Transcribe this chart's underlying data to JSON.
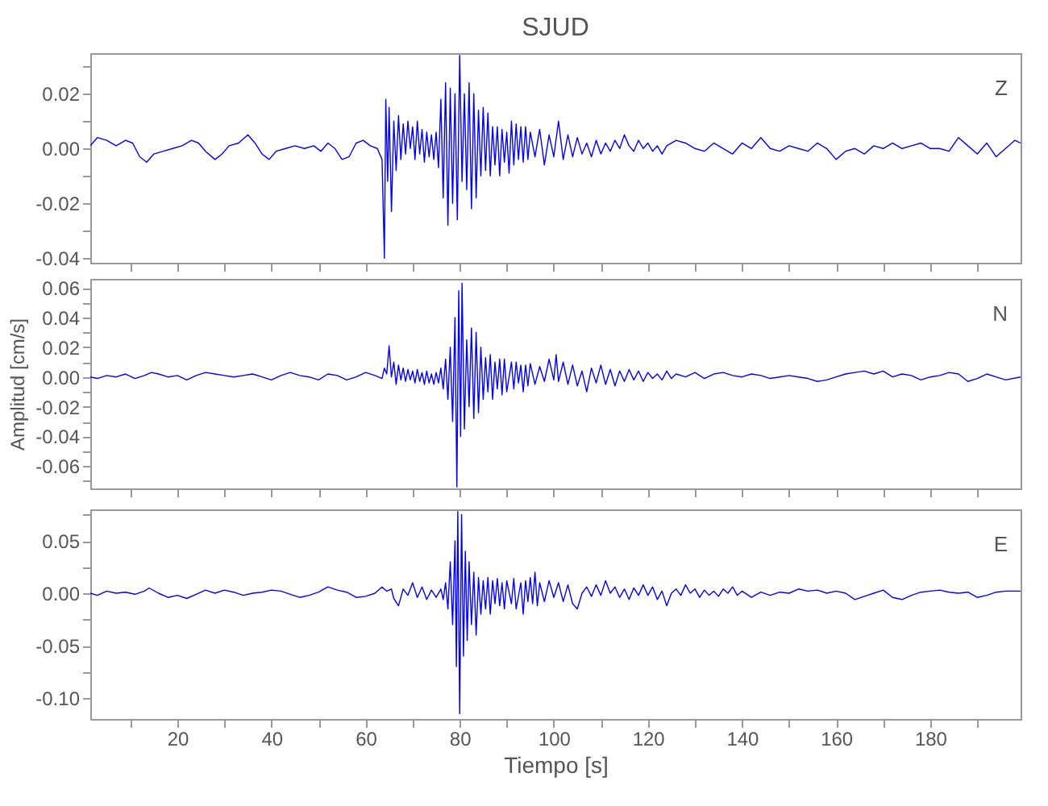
{
  "chart_data": [
    {
      "type": "line",
      "title": "SJUD",
      "annotations": [
        "Z"
      ],
      "tick_labels": "y",
      "xlim": [
        1.5,
        199.2
      ],
      "ylim": [
        -0.0417,
        0.0348
      ],
      "xticks": [
        {
          "value": 10,
          "label": null
        },
        20,
        {
          "value": 30,
          "label": null
        },
        40,
        {
          "value": 50,
          "label": null
        },
        60,
        {
          "value": 70,
          "label": null
        },
        80,
        {
          "value": 90,
          "label": null
        },
        100,
        {
          "value": 110,
          "label": null
        },
        120,
        {
          "value": 130,
          "label": null
        },
        140,
        {
          "value": 150,
          "label": null
        },
        160,
        {
          "value": 170,
          "label": null
        },
        180,
        {
          "value": 190,
          "label": null
        }
      ],
      "yticks": [
        {
          "value": -0.04,
          "label": "-0.04"
        },
        {
          "value": -0.03,
          "label": null
        },
        {
          "value": -0.02,
          "label": "-0.02"
        },
        {
          "value": -0.01,
          "label": null
        },
        {
          "value": 0,
          "label": "0.00"
        },
        {
          "value": 0.01,
          "label": null
        },
        0.02,
        {
          "value": 0.03,
          "label": null
        }
      ],
      "series": [
        {
          "color": "#0000ff",
          "x": [
            1.5,
            3,
            5,
            7,
            9,
            10.5,
            12,
            13.5,
            15,
            17,
            19,
            21,
            23,
            24.5,
            26,
            28,
            29.5,
            31,
            33,
            35,
            36.5,
            38,
            39.5,
            41,
            43,
            45,
            47,
            49,
            50.5,
            52,
            53.5,
            55,
            56.5,
            58,
            59.5,
            61,
            62.5,
            63.5,
            64,
            64.3,
            64.7,
            65,
            65.5,
            66,
            66.5,
            67,
            67.5,
            68,
            68.5,
            69,
            69.5,
            70,
            70.5,
            71,
            71.5,
            72,
            72.5,
            73,
            73.5,
            74,
            74.5,
            75,
            75.5,
            76,
            76.5,
            77,
            77.5,
            78,
            78.5,
            79,
            79.5,
            80,
            80.5,
            81,
            81.5,
            82,
            82.5,
            83,
            83.5,
            84,
            84.5,
            85,
            85.5,
            86,
            86.5,
            87,
            87.5,
            88,
            88.5,
            89,
            89.5,
            90,
            90.5,
            91,
            91.5,
            92,
            92.5,
            93,
            93.5,
            94,
            94.5,
            95,
            96,
            97,
            98,
            99,
            100,
            101,
            102,
            103,
            104,
            105,
            106,
            107,
            108,
            109,
            110,
            111,
            112,
            113,
            114,
            115,
            116,
            117,
            118,
            119,
            120,
            121,
            122,
            123,
            124,
            126,
            128,
            130,
            132,
            134,
            136,
            138,
            140,
            142,
            144,
            146,
            148,
            150,
            152,
            154,
            156,
            158,
            160,
            162,
            164,
            166,
            168,
            170,
            172,
            174,
            176,
            178,
            180,
            182,
            184,
            186,
            188,
            190,
            192,
            194,
            196,
            198,
            199.2
          ],
          "values": [
            0.001,
            0.004,
            0.003,
            0.001,
            0.003,
            0.002,
            -0.003,
            -0.005,
            -0.002,
            -0.001,
            0,
            0.001,
            0.003,
            0.002,
            -0.001,
            -0.004,
            -0.002,
            0.001,
            0.002,
            0.005,
            0.002,
            -0.002,
            -0.004,
            -0.001,
            0,
            0.001,
            0,
            0.001,
            -0.001,
            0.002,
            0,
            -0.004,
            -0.003,
            0.002,
            0.003,
            0.001,
            0,
            -0.004,
            -0.04,
            0.018,
            -0.012,
            0.015,
            -0.023,
            0.01,
            -0.008,
            0.012,
            -0.004,
            0.009,
            -0.002,
            0.01,
            0,
            0.008,
            -0.004,
            0.01,
            -0.002,
            0.007,
            -0.005,
            0.006,
            -0.003,
            0.005,
            -0.004,
            0.006,
            -0.007,
            0.018,
            -0.018,
            0.024,
            -0.028,
            0.022,
            -0.02,
            0.02,
            -0.026,
            0.034,
            -0.012,
            0.02,
            -0.015,
            0.024,
            -0.022,
            0.02,
            -0.018,
            0.014,
            -0.01,
            0.015,
            -0.008,
            0.013,
            -0.01,
            0.008,
            -0.006,
            0.008,
            -0.01,
            0.007,
            -0.005,
            0.006,
            -0.009,
            0.01,
            -0.006,
            0.009,
            -0.004,
            0.008,
            -0.005,
            0.008,
            -0.004,
            0.006,
            -0.003,
            0.007,
            -0.006,
            0.005,
            -0.003,
            0.01,
            -0.004,
            0.005,
            -0.003,
            0.004,
            -0.002,
            0.002,
            -0.003,
            0.003,
            -0.002,
            0.002,
            -0.001,
            0.003,
            0,
            0.005,
            0.001,
            -0.001,
            0.003,
            0,
            0.002,
            -0.001,
            0.001,
            -0.002,
            0.001,
            0.003,
            0.002,
            0,
            -0.001,
            0.002,
            0,
            -0.002,
            0.002,
            0,
            0.004,
            0,
            -0.001,
            0.001,
            0,
            -0.001,
            0.002,
            0,
            -0.004,
            -0.001,
            0,
            -0.002,
            0.001,
            0,
            0.002,
            0,
            0.001,
            0.002,
            0,
            0,
            -0.001,
            0.004,
            0.001,
            -0.002,
            0.002,
            -0.003,
            0,
            0.003,
            0.002
          ]
        }
      ]
    },
    {
      "type": "line",
      "ylabel": "Amplitud [cm/s]",
      "annotations": [
        "N"
      ],
      "tick_labels": "y",
      "xlim": [
        1.5,
        199.2
      ],
      "ylim": [
        -0.075,
        0.066
      ],
      "xticks": [
        {
          "value": 10,
          "label": null
        },
        20,
        {
          "value": 30,
          "label": null
        },
        40,
        {
          "value": 50,
          "label": null
        },
        60,
        {
          "value": 70,
          "label": null
        },
        80,
        {
          "value": 90,
          "label": null
        },
        100,
        {
          "value": 110,
          "label": null
        },
        120,
        {
          "value": 130,
          "label": null
        },
        140,
        {
          "value": 150,
          "label": null
        },
        160,
        {
          "value": 170,
          "label": null
        },
        180,
        {
          "value": 190,
          "label": null
        }
      ],
      "yticks": [
        {
          "value": -0.07,
          "label": null
        },
        {
          "value": -0.06,
          "label": "-0.06"
        },
        {
          "value": -0.05,
          "label": null
        },
        {
          "value": -0.04,
          "label": "-0.04"
        },
        {
          "value": -0.03,
          "label": null
        },
        {
          "value": -0.02,
          "label": "-0.02"
        },
        {
          "value": -0.01,
          "label": null
        },
        {
          "value": 0,
          "label": "0.00"
        },
        {
          "value": 0.01,
          "label": null
        },
        0.02,
        {
          "value": 0.03,
          "label": null
        },
        0.04,
        {
          "value": 0.05,
          "label": null
        },
        0.06
      ],
      "series": [
        {
          "color": "#0000ff",
          "x": [
            1.5,
            3,
            5,
            7,
            9,
            11,
            13,
            14.5,
            16,
            18,
            20,
            22,
            24,
            26,
            28,
            30,
            32,
            34,
            36,
            38,
            40,
            42,
            44,
            46,
            48,
            50,
            52,
            54,
            56,
            58,
            60,
            62,
            63.5,
            64,
            64.5,
            65,
            65.5,
            66,
            66.5,
            67,
            67.5,
            68,
            68.5,
            69,
            69.5,
            70,
            70.5,
            71,
            71.5,
            72,
            72.5,
            73,
            73.5,
            74,
            74.5,
            75,
            75.5,
            76,
            76.5,
            77,
            77.5,
            78,
            78.5,
            79,
            79.4,
            79.8,
            80.2,
            80.5,
            81,
            81.5,
            82,
            82.5,
            83,
            83.5,
            84,
            84.5,
            85,
            85.5,
            86,
            86.5,
            87,
            87.5,
            88,
            88.5,
            89,
            89.5,
            90,
            91,
            91.5,
            92,
            92.5,
            93,
            93.5,
            94,
            94.5,
            95,
            96,
            97,
            98,
            99,
            100,
            100.5,
            101,
            102,
            103,
            104,
            105,
            106,
            107,
            108,
            109,
            110,
            111,
            112,
            113,
            114,
            115,
            116,
            117,
            118,
            119,
            120,
            121,
            122,
            123,
            124,
            125,
            126,
            128,
            130,
            132,
            134,
            136,
            138,
            140,
            142,
            144,
            146,
            148,
            150,
            152,
            154,
            156,
            158,
            160,
            162,
            164,
            166,
            168,
            170,
            172,
            174,
            176,
            178,
            180,
            182,
            184,
            186,
            188,
            190,
            192,
            194,
            196,
            199.2
          ],
          "values": [
            0,
            -0.001,
            0.001,
            0,
            0.002,
            -0.001,
            0.001,
            0.003,
            0.002,
            0,
            0.001,
            -0.002,
            0.001,
            0.003,
            0.002,
            0.001,
            0,
            0.001,
            0.002,
            0,
            -0.002,
            0.001,
            0.003,
            0.001,
            0,
            -0.002,
            0.002,
            0.001,
            -0.002,
            0,
            0.003,
            0.001,
            -0.001,
            0.006,
            0.002,
            0.021,
            0,
            0.01,
            -0.005,
            0.008,
            -0.002,
            0.006,
            -0.003,
            0.005,
            -0.002,
            0.004,
            -0.004,
            0.005,
            -0.003,
            0.003,
            -0.005,
            0.004,
            -0.004,
            0.002,
            -0.005,
            0.003,
            -0.004,
            0.006,
            -0.008,
            0.012,
            -0.015,
            0.02,
            -0.03,
            0.04,
            -0.074,
            0.058,
            -0.04,
            0.063,
            -0.035,
            0.025,
            -0.02,
            0.033,
            -0.028,
            0.03,
            -0.024,
            0.02,
            -0.015,
            0.013,
            -0.01,
            0.015,
            -0.015,
            0.01,
            -0.008,
            0.012,
            -0.012,
            0.012,
            -0.01,
            0.01,
            -0.008,
            0.01,
            -0.004,
            0.008,
            -0.01,
            0.008,
            -0.006,
            0.009,
            -0.005,
            0.007,
            -0.003,
            0.012,
            -0.002,
            0.015,
            -0.003,
            0.01,
            -0.005,
            0.008,
            -0.006,
            0.004,
            -0.01,
            0.006,
            -0.004,
            0.008,
            -0.005,
            0.005,
            -0.006,
            0.004,
            -0.003,
            0.005,
            -0.002,
            0.004,
            -0.003,
            0.003,
            -0.001,
            0.002,
            -0.002,
            0.004,
            -0.001,
            0.002,
            0,
            0.003,
            -0.001,
            0.002,
            0.003,
            0.001,
            0,
            0.002,
            0.001,
            -0.001,
            0,
            0.001,
            0,
            -0.001,
            -0.003,
            -0.002,
            0,
            0.002,
            0.003,
            0.004,
            0.002,
            0.004,
            0,
            0.002,
            0.001,
            -0.002,
            0,
            0.001,
            0.003,
            0.002,
            -0.003,
            -0.001,
            0.002,
            0,
            -0.002,
            0
          ]
        }
      ]
    },
    {
      "type": "line",
      "xlabel": "Tiempo [s]",
      "annotations": [
        "E"
      ],
      "xlim": [
        1.5,
        199.2
      ],
      "ylim": [
        -0.12,
        0.08
      ],
      "xticks": [
        {
          "value": 10,
          "label": null
        },
        20,
        {
          "value": 30,
          "label": null
        },
        40,
        {
          "value": 50,
          "label": null
        },
        60,
        {
          "value": 70,
          "label": null
        },
        80,
        {
          "value": 90,
          "label": null
        },
        100,
        {
          "value": 110,
          "label": null
        },
        120,
        {
          "value": 130,
          "label": null
        },
        140,
        {
          "value": 150,
          "label": null
        },
        160,
        {
          "value": 170,
          "label": null
        },
        180,
        {
          "value": 190,
          "label": null
        }
      ],
      "yticks": [
        {
          "value": -0.1,
          "label": "-0.10"
        },
        {
          "value": -0.075,
          "label": null
        },
        {
          "value": -0.05,
          "label": "-0.05"
        },
        {
          "value": -0.025,
          "label": null
        },
        {
          "value": 0,
          "label": "0.00"
        },
        {
          "value": 0.025,
          "label": null
        },
        0.05,
        {
          "value": 0.075,
          "label": null
        }
      ],
      "series": [
        {
          "color": "#0000ff",
          "x": [
            1.5,
            3,
            5,
            7,
            9,
            11,
            13,
            14,
            16,
            18,
            20,
            22,
            24,
            26,
            28,
            30,
            32,
            34,
            36,
            38,
            40,
            42,
            44,
            46,
            48,
            50,
            52,
            54,
            56,
            58,
            60,
            62,
            63.5,
            64.5,
            65.5,
            66,
            67,
            68,
            69,
            70,
            71,
            72,
            73,
            74,
            75,
            76,
            76.5,
            77,
            77.5,
            78,
            78.5,
            79,
            79.3,
            79.6,
            80,
            80.4,
            80.8,
            81.2,
            81.6,
            82,
            82.5,
            83,
            83.5,
            84,
            84.5,
            85,
            85.5,
            86,
            86.5,
            87,
            87.5,
            88,
            88.5,
            89,
            89.5,
            90,
            91,
            91.5,
            92,
            93,
            93.5,
            94,
            94.5,
            95,
            95.5,
            96,
            96.5,
            97,
            98,
            99,
            100,
            101,
            102,
            103,
            104,
            105,
            106,
            107,
            108,
            109,
            110,
            111,
            112,
            113,
            114,
            115,
            116,
            117,
            118,
            119,
            120,
            121,
            122,
            123,
            124,
            125,
            126,
            127,
            128,
            129,
            130,
            131,
            132,
            133,
            134,
            135,
            136,
            137,
            138,
            139,
            140,
            142,
            144,
            146,
            148,
            150,
            152,
            154,
            156,
            158,
            160,
            162,
            164,
            166,
            168,
            170,
            172,
            174,
            176,
            178,
            180,
            182,
            184,
            186,
            188,
            190,
            192,
            194,
            196,
            199.2
          ],
          "values": [
            0,
            -0.002,
            0.002,
            0,
            0.001,
            -0.001,
            0.002,
            0.005,
            0,
            -0.004,
            -0.002,
            -0.005,
            -0.001,
            0.003,
            0,
            0.003,
            0.001,
            -0.002,
            0,
            0.001,
            0.003,
            0.002,
            -0.001,
            -0.004,
            -0.002,
            0.001,
            0.006,
            0.003,
            0.001,
            -0.004,
            -0.003,
            0,
            0.006,
            0.002,
            0.004,
            -0.005,
            -0.012,
            0.004,
            -0.002,
            0.01,
            -0.004,
            0.006,
            -0.006,
            0.003,
            -0.004,
            0.004,
            -0.006,
            0.01,
            -0.015,
            0.03,
            -0.03,
            0.05,
            -0.07,
            0.078,
            -0.115,
            0.075,
            -0.06,
            0.04,
            -0.045,
            0.03,
            -0.03,
            0.02,
            -0.04,
            0.015,
            -0.02,
            0.012,
            -0.015,
            0.015,
            -0.02,
            0.012,
            -0.01,
            0.014,
            -0.012,
            0.01,
            -0.015,
            0.012,
            -0.01,
            0.014,
            -0.015,
            0.01,
            -0.02,
            0.012,
            -0.008,
            0.015,
            -0.01,
            0.02,
            -0.012,
            0.01,
            -0.008,
            0.012,
            -0.004,
            0.01,
            -0.008,
            0.008,
            -0.01,
            -0.015,
            0,
            0.006,
            -0.003,
            0.008,
            -0.002,
            0.012,
            0,
            0.006,
            -0.004,
            0.004,
            -0.006,
            0.005,
            -0.002,
            0.008,
            -0.002,
            0.006,
            -0.006,
            0.002,
            -0.012,
            0,
            0.004,
            -0.002,
            0.008,
            0,
            0.004,
            -0.004,
            0.003,
            -0.002,
            0.002,
            -0.003,
            0.004,
            0,
            0.006,
            -0.002,
            0.002,
            -0.004,
            0.001,
            -0.002,
            0.001,
            0,
            0.004,
            0.002,
            0.003,
            0,
            0.002,
            0,
            -0.006,
            -0.003,
            0,
            0.003,
            -0.004,
            -0.006,
            -0.002,
            0.001,
            0.002,
            0.003,
            0.001,
            0,
            0.001,
            -0.004,
            -0.002,
            0.001,
            0.002,
            0.002
          ]
        }
      ]
    }
  ]
}
